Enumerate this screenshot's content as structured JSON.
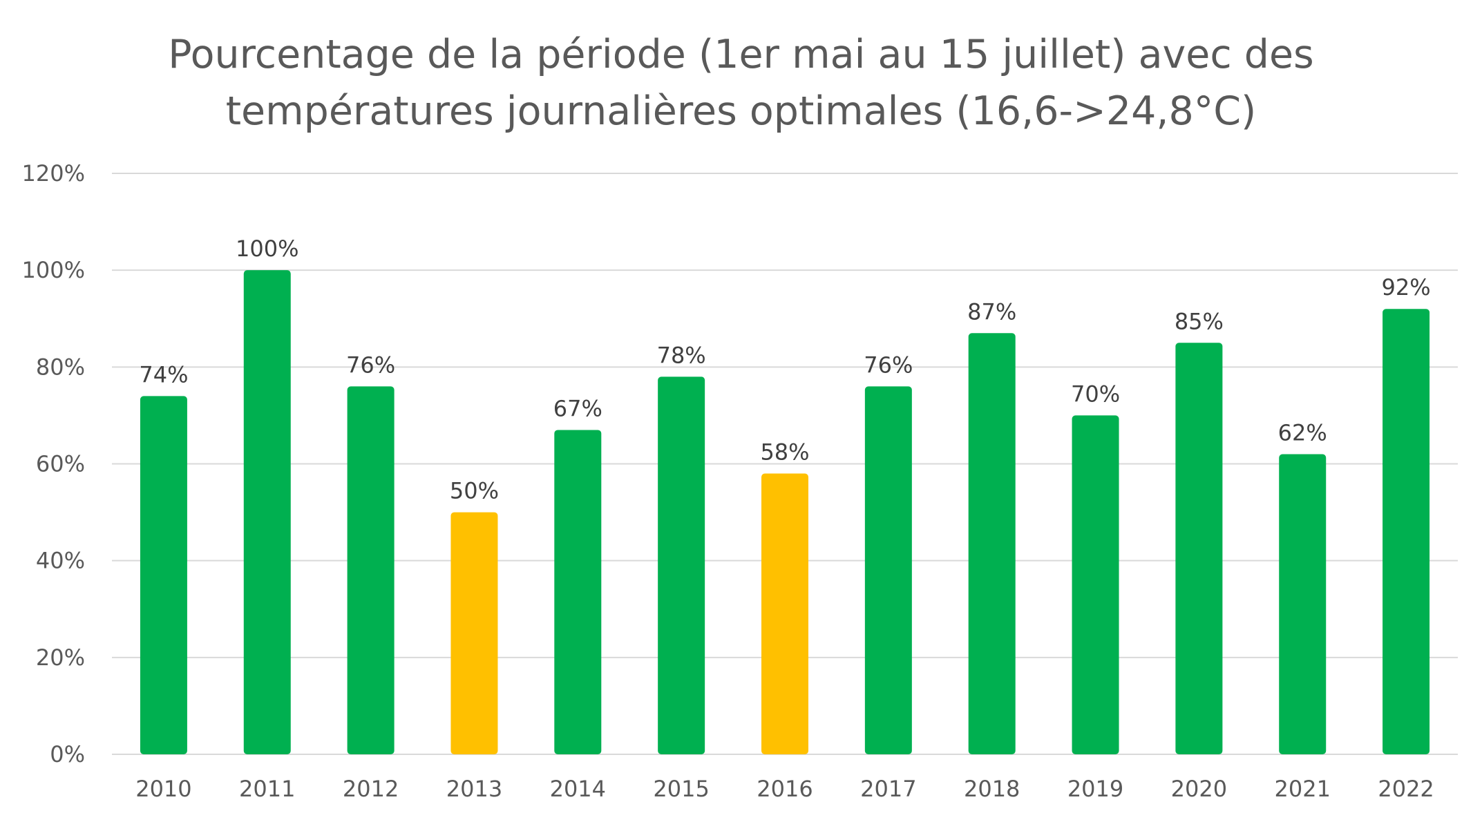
{
  "chart_data": {
    "type": "bar",
    "title_lines": [
      "Pourcentage de la période (1er mai au 15 juillet) avec des",
      "températures journalières optimales  (16,6->24,8°C)"
    ],
    "xlabel": "",
    "ylabel": "",
    "categories": [
      "2010",
      "2011",
      "2012",
      "2013",
      "2014",
      "2015",
      "2016",
      "2017",
      "2018",
      "2019",
      "2020",
      "2021",
      "2022"
    ],
    "values": [
      74,
      100,
      76,
      50,
      67,
      78,
      58,
      76,
      87,
      70,
      85,
      62,
      92
    ],
    "data_labels": [
      "74%",
      "100%",
      "76%",
      "50%",
      "67%",
      "78%",
      "58%",
      "76%",
      "87%",
      "70%",
      "85%",
      "62%",
      "92%"
    ],
    "bar_colors": [
      "#00b050",
      "#00b050",
      "#00b050",
      "#ffc000",
      "#00b050",
      "#00b050",
      "#ffc000",
      "#00b050",
      "#00b050",
      "#00b050",
      "#00b050",
      "#00b050",
      "#00b050"
    ],
    "ylim": [
      0,
      120
    ],
    "yticks": [
      0,
      20,
      40,
      60,
      80,
      100,
      120
    ],
    "ytick_labels": [
      "0%",
      "20%",
      "40%",
      "60%",
      "80%",
      "100%",
      "120%"
    ],
    "grid": true,
    "gridline_color": "#d9d9d9",
    "legend": "none"
  }
}
